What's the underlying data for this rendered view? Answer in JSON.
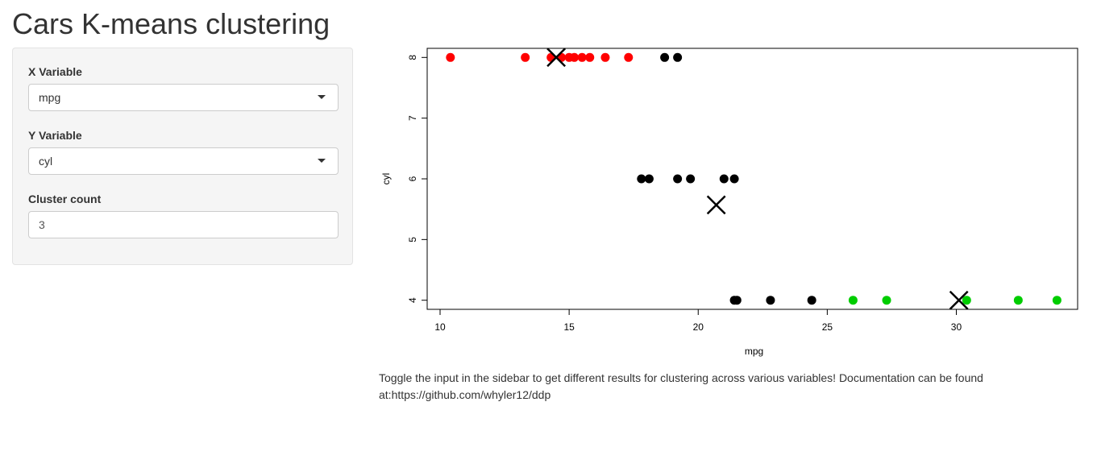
{
  "page": {
    "title": "Cars K-means clustering"
  },
  "sidebar": {
    "x_variable": {
      "label": "X Variable",
      "selected": "mpg"
    },
    "y_variable": {
      "label": "Y Variable",
      "selected": "cyl"
    },
    "cluster_count": {
      "label": "Cluster count",
      "value": "3"
    }
  },
  "description": "Toggle the input in the sidebar to get different results for clustering across various variables! Documentation can be found at:https://github.com/whyler12/ddp",
  "chart_data": {
    "type": "scatter",
    "title": "",
    "xlabel": "mpg",
    "ylabel": "cyl",
    "xlim": [
      9.5,
      34.7
    ],
    "ylim": [
      3.85,
      8.15
    ],
    "xticks": [
      10,
      15,
      20,
      25,
      30
    ],
    "yticks": [
      4,
      5,
      6,
      7,
      8
    ],
    "grid": false,
    "series": [
      {
        "color": "#ff0000",
        "points": [
          [
            10.4,
            8
          ],
          [
            13.3,
            8
          ],
          [
            14.3,
            8
          ],
          [
            14.7,
            8
          ],
          [
            15.0,
            8
          ],
          [
            15.2,
            8
          ],
          [
            15.5,
            8
          ],
          [
            15.8,
            8
          ],
          [
            16.4,
            8
          ],
          [
            17.3,
            8
          ]
        ]
      },
      {
        "color": "#000000",
        "points": [
          [
            18.7,
            8
          ],
          [
            19.2,
            8
          ],
          [
            17.8,
            6
          ],
          [
            18.1,
            6
          ],
          [
            19.2,
            6
          ],
          [
            19.7,
            6
          ],
          [
            21.0,
            6
          ],
          [
            21.4,
            6
          ],
          [
            21.4,
            4
          ],
          [
            21.5,
            4
          ],
          [
            22.8,
            4
          ],
          [
            24.4,
            4
          ]
        ]
      },
      {
        "color": "#00cd00",
        "points": [
          [
            26.0,
            4
          ],
          [
            27.3,
            4
          ],
          [
            30.4,
            4
          ],
          [
            32.4,
            4
          ],
          [
            33.9,
            4
          ]
        ]
      }
    ],
    "centers": [
      {
        "x": 14.5,
        "y": 8.0,
        "color": "#000000"
      },
      {
        "x": 20.7,
        "y": 5.57,
        "color": "#000000"
      },
      {
        "x": 30.1,
        "y": 4.0,
        "color": "#000000"
      }
    ]
  }
}
